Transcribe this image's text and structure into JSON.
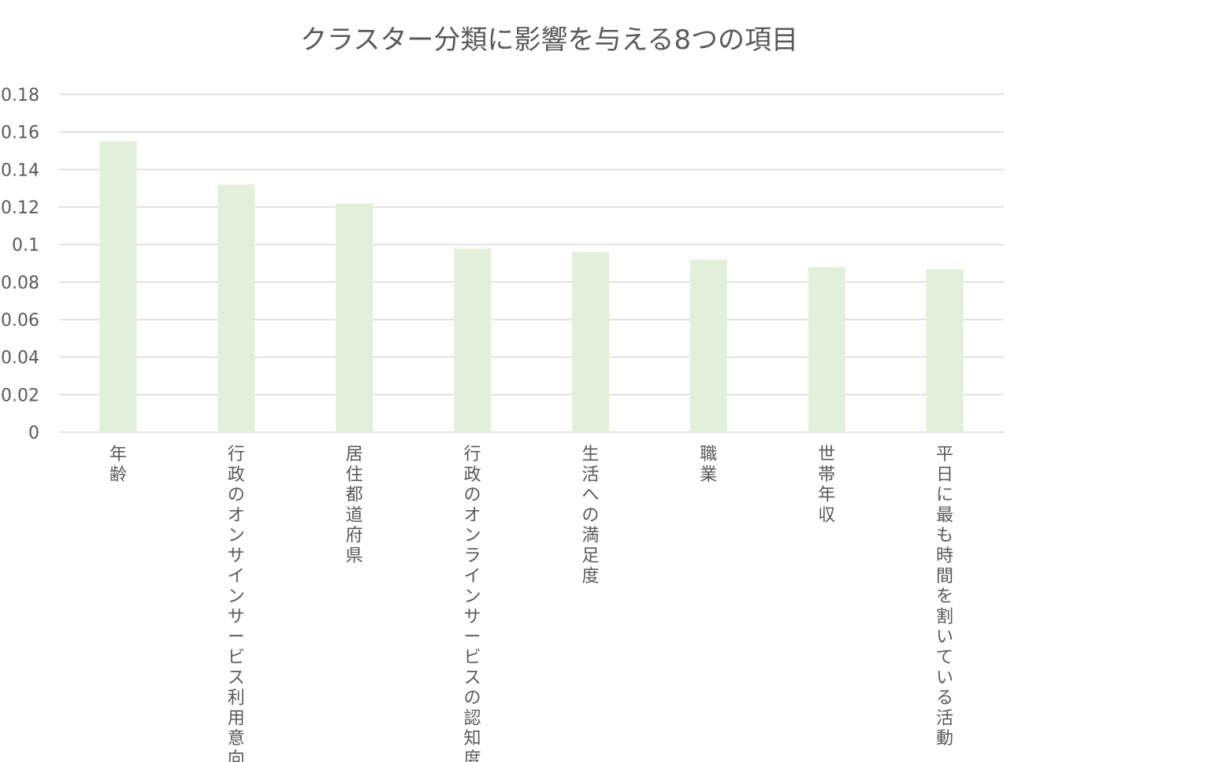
{
  "chart_data": {
    "type": "bar",
    "title": "クラスター分類に影響を与える8つの項目",
    "categories": [
      "年齢",
      "行政のオンサインサービス利用意向",
      "居住都道府県",
      "行政のオンラインサービスの認知度",
      "生活への満足度",
      "職業",
      "世帯年収",
      "平日に最も時間を割いている活動"
    ],
    "values": [
      0.155,
      0.132,
      0.122,
      0.098,
      0.096,
      0.092,
      0.088,
      0.087
    ],
    "xlabel": "",
    "ylabel": "",
    "ylim": [
      0,
      0.18
    ],
    "y_ticks": [
      0,
      0.02,
      0.04,
      0.06,
      0.08,
      0.1,
      0.12,
      0.14,
      0.16,
      0.18
    ],
    "y_tick_labels": [
      "0",
      "0.02",
      "0.04",
      "0.06",
      "0.08",
      "0.1",
      "0.12",
      "0.14",
      "0.16",
      "0.18"
    ],
    "grid": true,
    "legend": false,
    "bar_color": "#E2EFDA",
    "grid_color": "#D9D9D9",
    "text_color": "#595959"
  }
}
